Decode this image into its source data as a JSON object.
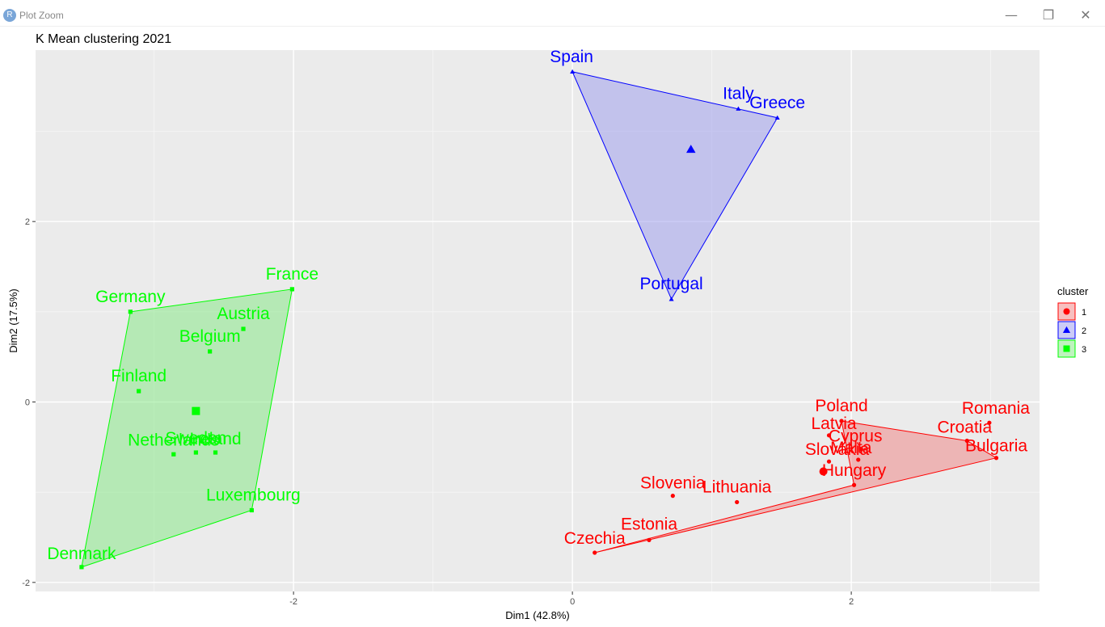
{
  "window": {
    "title": "Plot Zoom",
    "icon": "r-logo-icon",
    "buttons": [
      "minimize",
      "maximize",
      "close"
    ]
  },
  "chart_data": {
    "type": "scatter",
    "title": "K Mean clustering 2021",
    "xlabel": "Dim1 (42.8%)",
    "ylabel": "Dim2 (17.5%)",
    "xlim": [
      -3.85,
      3.35
    ],
    "ylim": [
      -2.1,
      3.9
    ],
    "x_ticks": [
      -2,
      0,
      2
    ],
    "y_ticks": [
      -2,
      0,
      2
    ],
    "grid": true,
    "legend": {
      "title": "cluster",
      "position": "right",
      "entries": [
        "1",
        "2",
        "3"
      ]
    },
    "clusters": [
      {
        "name": "1",
        "color": "#ff0000",
        "fill": "#f08080",
        "shape": "circle",
        "centroid": [
          1.8,
          -0.77
        ],
        "hull": [
          "Czechia",
          "Bulgaria",
          "Croatia",
          "Poland",
          "Hungary"
        ],
        "points": [
          {
            "label": "Poland",
            "x": 1.93,
            "y": -0.21
          },
          {
            "label": "Romania",
            "x": 2.99,
            "y": -0.23
          },
          {
            "label": "Croatia",
            "x": 2.83,
            "y": -0.43
          },
          {
            "label": "Bulgaria",
            "x": 3.04,
            "y": -0.62
          },
          {
            "label": "Latvia",
            "x": 1.84,
            "y": -0.37
          },
          {
            "label": "Cyprus",
            "x": 2.07,
            "y": -0.52
          },
          {
            "label": "Slovakia",
            "x": 1.84,
            "y": -0.66
          },
          {
            "label": "Malta",
            "x": 2.05,
            "y": -0.64
          },
          {
            "label": "Hungary",
            "x": 2.02,
            "y": -0.92
          },
          {
            "label": "Slovenia",
            "x": 0.72,
            "y": -1.04
          },
          {
            "label": "Lithuania",
            "x": 1.18,
            "y": -1.11
          },
          {
            "label": "Estonia",
            "x": 0.55,
            "y": -1.53
          },
          {
            "label": "Czechia",
            "x": 0.16,
            "y": -1.67
          }
        ]
      },
      {
        "name": "2",
        "color": "#0000ff",
        "fill": "#9999ee",
        "shape": "triangle",
        "centroid": [
          0.85,
          2.8
        ],
        "hull": [
          "Spain",
          "Greece",
          "Portugal"
        ],
        "points": [
          {
            "label": "Spain",
            "x": 0.0,
            "y": 3.66
          },
          {
            "label": "Italy",
            "x": 1.19,
            "y": 3.25
          },
          {
            "label": "Greece",
            "x": 1.47,
            "y": 3.15
          },
          {
            "label": "Portugal",
            "x": 0.71,
            "y": 1.14
          }
        ]
      },
      {
        "name": "3",
        "color": "#00ff00",
        "fill": "#80e880",
        "shape": "square",
        "centroid": [
          -2.7,
          -0.1
        ],
        "hull": [
          "Germany",
          "France",
          "Luxembourg",
          "Denmark"
        ],
        "points": [
          {
            "label": "France",
            "x": -2.01,
            "y": 1.25
          },
          {
            "label": "Germany",
            "x": -3.17,
            "y": 1.0
          },
          {
            "label": "Austria",
            "x": -2.36,
            "y": 0.81
          },
          {
            "label": "Belgium",
            "x": -2.6,
            "y": 0.56
          },
          {
            "label": "Finland",
            "x": -3.11,
            "y": 0.12
          },
          {
            "label": "Sweden",
            "x": -2.7,
            "y": -0.56
          },
          {
            "label": "Ireland",
            "x": -2.56,
            "y": -0.56
          },
          {
            "label": "Netherlands",
            "x": -2.86,
            "y": -0.58
          },
          {
            "label": "Luxembourg",
            "x": -2.3,
            "y": -1.2
          },
          {
            "label": "Denmark",
            "x": -3.52,
            "y": -1.83
          }
        ]
      }
    ]
  }
}
